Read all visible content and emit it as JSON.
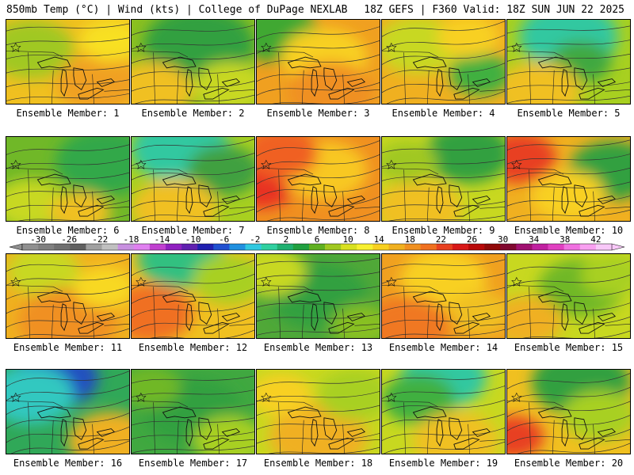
{
  "header": {
    "left": "850mb Temp (°C) | Wind (kts) | College of DuPage NEXLAB",
    "right": "18Z GEFS | F360 Valid: 18Z SUN JUN 22 2025"
  },
  "member_prefix": "Ensemble Member:",
  "members": [
    {
      "id": "1",
      "base": "#f0c020",
      "blobs": [
        [
          "#a0c820",
          0.2,
          0.35,
          0.35
        ],
        [
          "#f0a020",
          0.75,
          0.75,
          0.35
        ],
        [
          "#f8e020",
          0.85,
          0.25,
          0.25
        ]
      ]
    },
    {
      "id": "2",
      "base": "#8cc020",
      "blobs": [
        [
          "#30a040",
          0.55,
          0.3,
          0.45
        ],
        [
          "#f0c020",
          0.15,
          0.85,
          0.35
        ],
        [
          "#c8d820",
          0.8,
          0.8,
          0.3
        ]
      ]
    },
    {
      "id": "3",
      "base": "#f0a020",
      "blobs": [
        [
          "#40a830",
          0.15,
          0.15,
          0.35
        ],
        [
          "#f8d020",
          0.55,
          0.45,
          0.35
        ],
        [
          "#f09020",
          0.6,
          0.85,
          0.35
        ]
      ]
    },
    {
      "id": "4",
      "base": "#f0b020",
      "blobs": [
        [
          "#c8d820",
          0.3,
          0.3,
          0.35
        ],
        [
          "#40b040",
          0.8,
          0.65,
          0.25
        ],
        [
          "#f8d020",
          0.7,
          0.2,
          0.25
        ]
      ]
    },
    {
      "id": "5",
      "base": "#a8d020",
      "blobs": [
        [
          "#30c8a0",
          0.5,
          0.2,
          0.4
        ],
        [
          "#40a840",
          0.6,
          0.5,
          0.25
        ],
        [
          "#f0c020",
          0.25,
          0.85,
          0.35
        ]
      ]
    },
    {
      "id": "6",
      "base": "#70b828",
      "blobs": [
        [
          "#30a848",
          0.8,
          0.3,
          0.4
        ],
        [
          "#c8d820",
          0.2,
          0.8,
          0.3
        ],
        [
          "#f0c020",
          0.6,
          0.9,
          0.25
        ]
      ]
    },
    {
      "id": "7",
      "base": "#a8d020",
      "blobs": [
        [
          "#30c8a0",
          0.4,
          0.15,
          0.4
        ],
        [
          "#40a040",
          0.75,
          0.4,
          0.3
        ],
        [
          "#f0c020",
          0.35,
          0.85,
          0.35
        ]
      ]
    },
    {
      "id": "8",
      "base": "#f09020",
      "blobs": [
        [
          "#e83020",
          0.05,
          0.6,
          0.25
        ],
        [
          "#f8c820",
          0.55,
          0.4,
          0.35
        ],
        [
          "#f06020",
          0.2,
          0.2,
          0.3
        ]
      ]
    },
    {
      "id": "9",
      "base": "#c8d820",
      "blobs": [
        [
          "#30a040",
          0.7,
          0.2,
          0.35
        ],
        [
          "#f0c020",
          0.3,
          0.85,
          0.35
        ],
        [
          "#a0c820",
          0.2,
          0.3,
          0.25
        ]
      ]
    },
    {
      "id": "10",
      "base": "#f0b020",
      "blobs": [
        [
          "#e84020",
          0.1,
          0.25,
          0.3
        ],
        [
          "#30a040",
          0.85,
          0.4,
          0.35
        ],
        [
          "#f8d020",
          0.5,
          0.7,
          0.3
        ]
      ]
    },
    {
      "id": "11",
      "base": "#f0b020",
      "blobs": [
        [
          "#c8d820",
          0.3,
          0.2,
          0.3
        ],
        [
          "#f09020",
          0.5,
          0.8,
          0.4
        ],
        [
          "#f8d820",
          0.8,
          0.4,
          0.25
        ]
      ]
    },
    {
      "id": "12",
      "base": "#f0c020",
      "blobs": [
        [
          "#30c080",
          0.4,
          0.05,
          0.35
        ],
        [
          "#f07020",
          0.15,
          0.7,
          0.35
        ],
        [
          "#a8d020",
          0.8,
          0.3,
          0.3
        ]
      ]
    },
    {
      "id": "13",
      "base": "#50a838",
      "blobs": [
        [
          "#30a040",
          0.5,
          0.5,
          0.4
        ],
        [
          "#c8d820",
          0.1,
          0.2,
          0.3
        ],
        [
          "#88c020",
          0.85,
          0.85,
          0.25
        ]
      ]
    },
    {
      "id": "14",
      "base": "#f0a020",
      "blobs": [
        [
          "#f8d020",
          0.5,
          0.3,
          0.35
        ],
        [
          "#f07820",
          0.2,
          0.85,
          0.35
        ],
        [
          "#f0c020",
          0.8,
          0.7,
          0.25
        ]
      ]
    },
    {
      "id": "15",
      "base": "#c8d820",
      "blobs": [
        [
          "#70b828",
          0.6,
          0.4,
          0.35
        ],
        [
          "#f0b020",
          0.15,
          0.8,
          0.3
        ],
        [
          "#a8d020",
          0.85,
          0.25,
          0.25
        ]
      ]
    },
    {
      "id": "16",
      "base": "#30a858",
      "blobs": [
        [
          "#2050c0",
          0.4,
          0.1,
          0.35
        ],
        [
          "#30c8c0",
          0.2,
          0.3,
          0.35
        ],
        [
          "#f0b020",
          0.85,
          0.85,
          0.35
        ]
      ]
    },
    {
      "id": "17",
      "base": "#40a840",
      "blobs": [
        [
          "#30a040",
          0.5,
          0.5,
          0.4
        ],
        [
          "#a8d020",
          0.8,
          0.85,
          0.3
        ],
        [
          "#70b828",
          0.15,
          0.2,
          0.25
        ]
      ]
    },
    {
      "id": "18",
      "base": "#c8d820",
      "blobs": [
        [
          "#f0b020",
          0.5,
          0.8,
          0.4
        ],
        [
          "#a8d020",
          0.8,
          0.3,
          0.3
        ],
        [
          "#f8d020",
          0.2,
          0.3,
          0.25
        ]
      ]
    },
    {
      "id": "19",
      "base": "#c8d820",
      "blobs": [
        [
          "#30c8a0",
          0.5,
          0.1,
          0.35
        ],
        [
          "#40b040",
          0.3,
          0.35,
          0.3
        ],
        [
          "#f0c020",
          0.6,
          0.85,
          0.35
        ]
      ]
    },
    {
      "id": "20",
      "base": "#f0c020",
      "blobs": [
        [
          "#30a040",
          0.6,
          0.15,
          0.4
        ],
        [
          "#e84020",
          0.05,
          0.8,
          0.25
        ],
        [
          "#a8d020",
          0.75,
          0.55,
          0.3
        ]
      ]
    }
  ],
  "colorbar": {
    "ticks": [
      "-30",
      "-26",
      "-22",
      "-18",
      "-14",
      "-10",
      "-6",
      "-2",
      "2",
      "6",
      "10",
      "14",
      "18",
      "22",
      "26",
      "30",
      "34",
      "38",
      "42"
    ],
    "colors": [
      "#909090",
      "#808080",
      "#707070",
      "#606060",
      "#a0a0a0",
      "#c0c0c0",
      "#c890e0",
      "#e080f0",
      "#c040d0",
      "#9020c0",
      "#6020b0",
      "#2020b0",
      "#2050d0",
      "#2090e0",
      "#30c8e0",
      "#30d0a0",
      "#20b070",
      "#20a040",
      "#60b020",
      "#a0c820",
      "#d8e020",
      "#f8f030",
      "#f8d020",
      "#f0b020",
      "#f09020",
      "#f07020",
      "#e84020",
      "#d81818",
      "#b80808",
      "#900808",
      "#800830",
      "#a01070",
      "#c020a0",
      "#e040c0",
      "#f070e0",
      "#f8a0f0",
      "#f8c8f8"
    ]
  }
}
